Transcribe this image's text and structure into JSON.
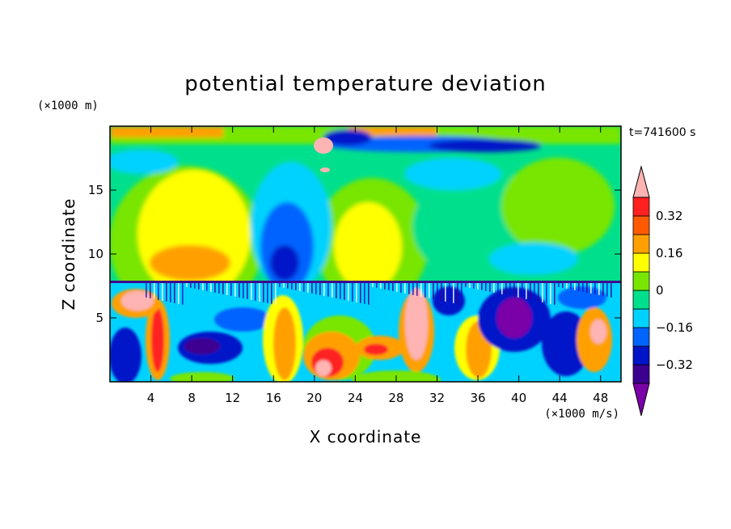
{
  "chart_data": {
    "type": "heatmap",
    "title": "potential temperature deviation",
    "xlabel": "X coordinate",
    "ylabel": "Z coordinate",
    "x_unit": "(×1000 m/s)",
    "y_unit": "(×1000 m)",
    "time_label": "t=741600 s",
    "xlim": [
      0,
      50
    ],
    "ylim": [
      0,
      20
    ],
    "x_ticks": [
      4,
      8,
      12,
      16,
      20,
      24,
      28,
      32,
      36,
      40,
      44,
      48
    ],
    "y_ticks": [
      5,
      10,
      15
    ],
    "colorbar": {
      "levels": [
        -0.4,
        -0.32,
        -0.24,
        -0.16,
        -0.08,
        0,
        0.08,
        0.16,
        0.24,
        0.32,
        0.4
      ],
      "tick_values": [
        0.32,
        0.16,
        0,
        -0.16,
        -0.32
      ],
      "tick_labels": [
        "0.32",
        "0.16",
        "0",
        "−0.16",
        "−0.32"
      ],
      "colors": [
        "#7a00a8",
        "#3c0090",
        "#0014c8",
        "#0064ff",
        "#00d2ff",
        "#00e08c",
        "#78e600",
        "#ffff00",
        "#ffa000",
        "#ff5a00",
        "#ff2020",
        "#ffb4b4"
      ],
      "extend": "both"
    }
  }
}
